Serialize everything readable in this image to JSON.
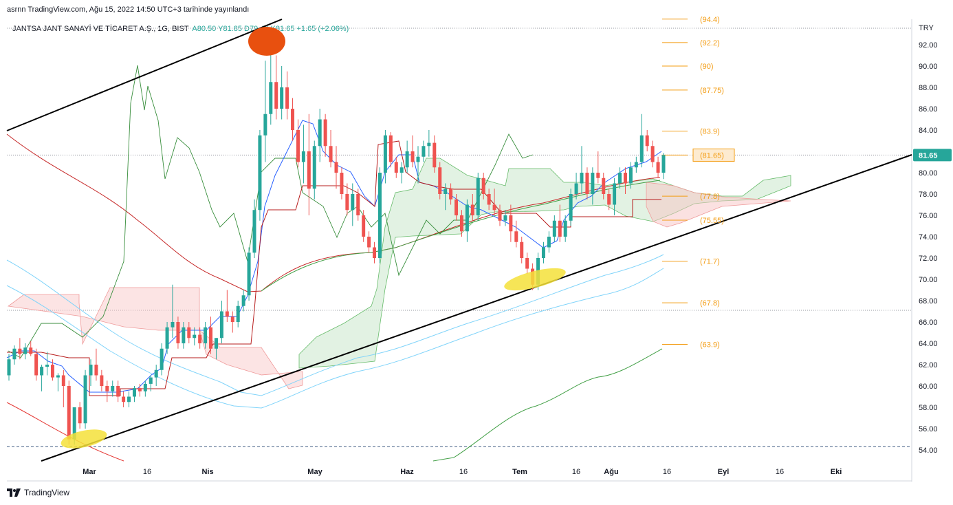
{
  "caption": "asrnn TradingView.com, Ağu 15, 2022 14:50 UTC+3 tarihinde yayınlandı",
  "legend": {
    "symbol": "JANTSA JANT SANAYİ VE TİCARET A.Ş., 1G, BIST",
    "ohlc": "A80.50  Y81.85  D79.40  K81.65  +1.65 (+2.06%)"
  },
  "brand": "TradingView",
  "currency": "TRY",
  "last_price_label": "81.65",
  "colors": {
    "up": "#26a69a",
    "down": "#ef5350",
    "fib": "#f39c12",
    "trend": "#000000"
  },
  "chart_data": {
    "type": "candlestick",
    "y_axis": {
      "range": [
        53,
        94.5
      ],
      "ticks": [
        "54.00",
        "56.00",
        "58.00",
        "60.00",
        "62.00",
        "64.00",
        "66.00",
        "68.00",
        "70.00",
        "72.00",
        "74.00",
        "76.00",
        "78.00",
        "80.00",
        "82.00",
        "84.00",
        "86.00",
        "88.00",
        "90.00",
        "92.00"
      ]
    },
    "x_axis": {
      "ticks": [
        {
          "label": "Mar",
          "bold": true
        },
        {
          "label": "16",
          "bold": false
        },
        {
          "label": "Nis",
          "bold": true
        },
        {
          "label": "May",
          "bold": true
        },
        {
          "label": "Haz",
          "bold": true
        },
        {
          "label": "16",
          "bold": false
        },
        {
          "label": "Tem",
          "bold": true
        },
        {
          "label": "16",
          "bold": false
        },
        {
          "label": "Ağu",
          "bold": true
        },
        {
          "label": "16",
          "bold": false
        },
        {
          "label": "Eyl",
          "bold": true
        },
        {
          "label": "16",
          "bold": false
        },
        {
          "label": "Eki",
          "bold": true
        }
      ]
    },
    "fib_levels": [
      "(94.4)",
      "(92.2)",
      "(90)",
      "(87.75)",
      "(83.9)",
      "(81.65)",
      "(77.8)",
      "(75.55)",
      "(71.7)",
      "(67.8)",
      "(63.9)"
    ],
    "fib_values": [
      94.4,
      92.2,
      90,
      87.75,
      83.9,
      81.65,
      77.8,
      75.55,
      71.7,
      67.8,
      63.9
    ],
    "candles_ohlc": [
      [
        61.0,
        63.0,
        60.5,
        62.5
      ],
      [
        62.5,
        63.8,
        62.0,
        63.5
      ],
      [
        63.5,
        64.5,
        62.5,
        63.0
      ],
      [
        63.0,
        64.0,
        62.5,
        63.6
      ],
      [
        63.6,
        64.2,
        62.8,
        63.0
      ],
      [
        63.0,
        63.5,
        60.5,
        61.0
      ],
      [
        61.0,
        62.0,
        59.5,
        61.8
      ],
      [
        61.8,
        63.2,
        61.0,
        62.0
      ],
      [
        62.0,
        62.5,
        60.5,
        60.8
      ],
      [
        60.8,
        61.2,
        59.5,
        61.0
      ],
      [
        61.0,
        61.5,
        58.0,
        60.0
      ],
      [
        60.0,
        60.5,
        54.5,
        55.0
      ],
      [
        55.0,
        58.0,
        54.5,
        58.0
      ],
      [
        58.0,
        58.5,
        56.0,
        56.5
      ],
      [
        56.5,
        61.5,
        56.0,
        61.0
      ],
      [
        61.0,
        62.5,
        60.0,
        62.0
      ],
      [
        62.0,
        63.5,
        60.5,
        61.0
      ],
      [
        61.0,
        61.5,
        59.5,
        60.0
      ],
      [
        60.0,
        60.5,
        58.5,
        59.5
      ],
      [
        59.5,
        60.5,
        59.0,
        60.0
      ],
      [
        60.0,
        60.5,
        58.5,
        59.0
      ],
      [
        59.0,
        59.5,
        58.0,
        58.5
      ],
      [
        58.5,
        59.5,
        58.0,
        59.0
      ],
      [
        59.0,
        60.0,
        58.5,
        59.8
      ],
      [
        59.8,
        60.2,
        59.0,
        59.5
      ],
      [
        59.5,
        60.5,
        59.0,
        60.2
      ],
      [
        60.2,
        61.0,
        59.5,
        60.8
      ],
      [
        60.8,
        62.0,
        60.0,
        61.5
      ],
      [
        61.5,
        64.0,
        61.0,
        63.5
      ],
      [
        63.5,
        66.0,
        63.0,
        65.5
      ],
      [
        65.5,
        69.5,
        64.5,
        66.0
      ],
      [
        66.0,
        66.5,
        63.5,
        64.0
      ],
      [
        64.0,
        66.0,
        63.5,
        65.5
      ],
      [
        65.5,
        66.0,
        64.0,
        64.5
      ],
      [
        64.5,
        65.5,
        63.8,
        64.8
      ],
      [
        64.8,
        65.5,
        63.5,
        64.0
      ],
      [
        64.0,
        66.0,
        63.5,
        65.5
      ],
      [
        65.5,
        66.5,
        63.0,
        63.5
      ],
      [
        63.5,
        64.5,
        62.5,
        64.5
      ],
      [
        64.5,
        68.0,
        64.0,
        67.0
      ],
      [
        67.0,
        69.0,
        66.0,
        66.5
      ],
      [
        66.5,
        67.0,
        65.0,
        66.0
      ],
      [
        66.0,
        68.0,
        65.5,
        67.5
      ],
      [
        67.5,
        69.0,
        67.0,
        68.5
      ],
      [
        68.5,
        73.0,
        68.0,
        72.5
      ],
      [
        72.5,
        77.5,
        72.0,
        76.5
      ],
      [
        76.5,
        84.0,
        75.5,
        83.5
      ],
      [
        83.5,
        90.5,
        81.0,
        85.5
      ],
      [
        85.5,
        91.0,
        84.5,
        88.5
      ],
      [
        88.5,
        91.0,
        85.0,
        86.0
      ],
      [
        86.0,
        90.0,
        85.0,
        88.0
      ],
      [
        88.0,
        89.5,
        85.0,
        86.0
      ],
      [
        86.0,
        87.0,
        83.0,
        84.0
      ],
      [
        84.0,
        85.0,
        80.5,
        81.0
      ],
      [
        81.0,
        84.5,
        79.0,
        82.0
      ],
      [
        82.0,
        85.5,
        76.0,
        78.5
      ],
      [
        78.5,
        83.0,
        77.5,
        82.5
      ],
      [
        82.5,
        86.0,
        81.0,
        85.0
      ],
      [
        85.0,
        85.5,
        81.5,
        82.5
      ],
      [
        82.5,
        84.0,
        80.5,
        81.0
      ],
      [
        81.0,
        82.5,
        78.5,
        80.0
      ],
      [
        80.0,
        80.5,
        77.5,
        78.0
      ],
      [
        78.0,
        79.0,
        76.0,
        76.5
      ],
      [
        76.5,
        79.0,
        75.0,
        78.0
      ],
      [
        78.0,
        78.5,
        75.5,
        76.0
      ],
      [
        76.0,
        76.5,
        73.5,
        74.0
      ],
      [
        74.0,
        74.5,
        72.5,
        73.0
      ],
      [
        73.0,
        73.5,
        71.5,
        72.0
      ],
      [
        72.0,
        80.5,
        71.5,
        80.0
      ],
      [
        80.0,
        84.0,
        79.0,
        83.5
      ],
      [
        83.5,
        83.8,
        80.5,
        81.0
      ],
      [
        81.0,
        81.5,
        79.5,
        80.0
      ],
      [
        80.0,
        81.0,
        79.0,
        80.5
      ],
      [
        80.5,
        83.0,
        80.0,
        82.0
      ],
      [
        82.0,
        83.5,
        80.5,
        81.0
      ],
      [
        81.0,
        82.5,
        79.0,
        81.5
      ],
      [
        81.5,
        83.0,
        81.0,
        82.5
      ],
      [
        82.5,
        84.0,
        81.5,
        82.8
      ],
      [
        82.8,
        83.5,
        80.0,
        80.5
      ],
      [
        80.5,
        81.0,
        77.5,
        78.0
      ],
      [
        78.0,
        79.0,
        76.5,
        78.5
      ],
      [
        78.5,
        79.0,
        77.0,
        77.5
      ],
      [
        77.5,
        78.0,
        75.5,
        76.0
      ],
      [
        76.0,
        76.5,
        74.0,
        74.5
      ],
      [
        74.5,
        77.5,
        73.5,
        77.0
      ],
      [
        77.0,
        78.0,
        75.5,
        76.0
      ],
      [
        76.0,
        80.0,
        75.5,
        79.5
      ],
      [
        79.5,
        80.0,
        77.5,
        78.0
      ],
      [
        78.0,
        78.5,
        76.5,
        77.0
      ],
      [
        77.0,
        78.5,
        76.0,
        76.5
      ],
      [
        76.5,
        77.0,
        75.0,
        75.5
      ],
      [
        75.5,
        76.5,
        75.0,
        76.0
      ],
      [
        76.0,
        77.0,
        73.5,
        74.5
      ],
      [
        74.5,
        75.5,
        73.0,
        73.5
      ],
      [
        73.5,
        74.0,
        71.5,
        72.0
      ],
      [
        72.0,
        72.5,
        70.5,
        71.0
      ],
      [
        71.0,
        71.5,
        69.0,
        69.5
      ],
      [
        69.5,
        72.5,
        69.0,
        72.0
      ],
      [
        72.0,
        73.5,
        71.5,
        73.0
      ],
      [
        73.0,
        74.5,
        72.5,
        74.0
      ],
      [
        74.0,
        76.0,
        73.5,
        75.5
      ],
      [
        75.5,
        77.0,
        73.5,
        74.0
      ],
      [
        74.0,
        76.0,
        73.5,
        75.5
      ],
      [
        75.5,
        78.5,
        75.0,
        78.0
      ],
      [
        78.0,
        80.0,
        77.5,
        79.0
      ],
      [
        79.0,
        82.5,
        78.0,
        80.0
      ],
      [
        80.0,
        80.5,
        77.5,
        78.0
      ],
      [
        78.0,
        80.5,
        77.0,
        80.0
      ],
      [
        80.0,
        82.0,
        79.0,
        79.5
      ],
      [
        79.5,
        80.0,
        77.5,
        78.0
      ],
      [
        78.0,
        78.5,
        76.5,
        77.0
      ],
      [
        77.0,
        79.5,
        76.0,
        79.0
      ],
      [
        79.0,
        80.5,
        78.5,
        80.0
      ],
      [
        80.0,
        80.5,
        78.0,
        79.0
      ],
      [
        79.0,
        81.0,
        78.5,
        80.5
      ],
      [
        80.5,
        81.5,
        80.0,
        81.0
      ],
      [
        81.0,
        85.5,
        80.5,
        83.5
      ],
      [
        83.5,
        84.0,
        82.0,
        82.5
      ],
      [
        82.5,
        83.0,
        80.5,
        81.0
      ],
      [
        81.0,
        81.5,
        79.5,
        80.0
      ],
      [
        80.0,
        81.85,
        79.4,
        81.65
      ]
    ],
    "overlay_series": [
      {
        "values": [
          63.2,
          63.4,
          63.0,
          63.1,
          62.8,
          61.5,
          60.5,
          60.2,
          59.8,
          59.6,
          59.4,
          59.3,
          59.4,
          59.6,
          59.8,
          60.0,
          60.1,
          60.2,
          60.3,
          60.4,
          60.5,
          60.6,
          60.8,
          61.1,
          61.5,
          62.0,
          62.6,
          63.3,
          64.1,
          65.0,
          66.0,
          67.5,
          69.2,
          71.1,
          73.0,
          74.6,
          76.0,
          77.3,
          78.4,
          79.4,
          80.3,
          81.0,
          81.6,
          82.1,
          82.5,
          82.8,
          83.0,
          83.0,
          82.8,
          82.5,
          82.0,
          81.4,
          80.8,
          80.3,
          79.9,
          79.6,
          79.4,
          79.3,
          79.2,
          79.1
        ]
      },
      {
        "values": [
          64.0,
          63.8,
          63.5,
          63.0,
          62.5,
          61.8,
          61.2,
          60.8,
          60.5,
          60.3,
          60.2,
          60.1,
          60.2,
          60.4,
          60.7,
          61.0,
          61.4,
          61.8,
          62.2,
          62.6,
          63.1,
          63.6,
          64.2,
          64.9,
          65.7,
          66.6,
          67.6,
          68.7,
          69.9,
          71.1,
          72.3,
          73.4,
          74.3,
          75.1,
          75.7,
          76.2,
          76.5,
          76.7,
          76.8,
          76.8,
          76.8,
          76.8,
          76.9,
          77.0,
          77.2,
          77.4,
          77.6,
          77.8,
          78.0,
          78.2,
          78.4,
          78.6,
          78.8,
          79.0,
          79.1,
          79.2,
          79.3,
          79.4,
          79.5,
          79.6
        ]
      }
    ]
  }
}
